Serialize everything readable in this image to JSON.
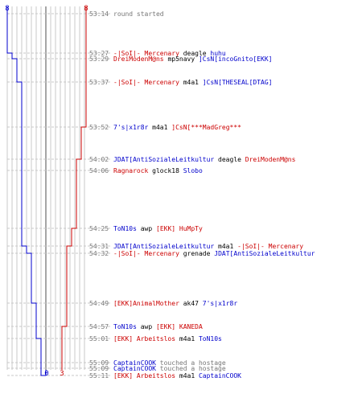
{
  "colors": {
    "team_a": "#0000cc",
    "team_b": "#cc0000",
    "neutral": "#777777",
    "text": "#000000"
  },
  "team_a_start": "8",
  "team_b_start": "8",
  "team_a_end": "0",
  "team_b_end": "3",
  "events": [
    {
      "time": "53:14",
      "parts": [
        {
          "t": "round started",
          "c": "neutral"
        }
      ]
    },
    {
      "time": "53:27",
      "parts": [
        {
          "t": "-|SoI|- Mercenary",
          "c": "team_b"
        },
        {
          "t": " deagle ",
          "c": "text"
        },
        {
          "t": "huhu",
          "c": "team_a"
        }
      ]
    },
    {
      "time": "53:29",
      "parts": [
        {
          "t": "DreiModenM@ns",
          "c": "team_b"
        },
        {
          "t": " mp5navy ",
          "c": "text"
        },
        {
          "t": "]CsN[incoGnito[EKK]",
          "c": "team_a"
        }
      ]
    },
    {
      "time": "53:37",
      "parts": [
        {
          "t": "-|SoI|- Mercenary",
          "c": "team_b"
        },
        {
          "t": " m4a1 ",
          "c": "text"
        },
        {
          "t": "]CsN[THESEAL[DTAG]",
          "c": "team_a"
        }
      ]
    },
    {
      "time": "53:52",
      "parts": [
        {
          "t": "7's|x1r8r",
          "c": "team_a"
        },
        {
          "t": " m4a1 ",
          "c": "text"
        },
        {
          "t": "]CsN[***MadGreg***",
          "c": "team_b"
        }
      ]
    },
    {
      "time": "54:02",
      "parts": [
        {
          "t": "JDAT[AntiSozialeLeitkultur",
          "c": "team_a"
        },
        {
          "t": " deagle ",
          "c": "text"
        },
        {
          "t": "DreiModenM@ns",
          "c": "team_b"
        }
      ]
    },
    {
      "time": "54:06",
      "parts": [
        {
          "t": "Ragnarock",
          "c": "team_b"
        },
        {
          "t": " glock18 ",
          "c": "text"
        },
        {
          "t": "Slobo",
          "c": "team_a"
        }
      ]
    },
    {
      "time": "54:25",
      "parts": [
        {
          "t": "ToN10s",
          "c": "team_a"
        },
        {
          "t": " awp ",
          "c": "text"
        },
        {
          "t": "[EKK] HuMpTy",
          "c": "team_b"
        }
      ]
    },
    {
      "time": "54:31",
      "parts": [
        {
          "t": "JDAT[AntiSozialeLeitkultur",
          "c": "team_a"
        },
        {
          "t": " m4a1 ",
          "c": "text"
        },
        {
          "t": "-|SoI|- Mercenary",
          "c": "team_b"
        }
      ]
    },
    {
      "time": "54:32",
      "parts": [
        {
          "t": "-|SoI|- Mercenary",
          "c": "team_b"
        },
        {
          "t": " grenade ",
          "c": "text"
        },
        {
          "t": "JDAT[AntiSozialeLeitkultur",
          "c": "team_a"
        }
      ]
    },
    {
      "time": "54:49",
      "parts": [
        {
          "t": "[EKK]AnimalMother",
          "c": "team_b"
        },
        {
          "t": " ak47 ",
          "c": "text"
        },
        {
          "t": "7's|x1r8r",
          "c": "team_a"
        }
      ]
    },
    {
      "time": "54:57",
      "parts": [
        {
          "t": "ToN10s",
          "c": "team_a"
        },
        {
          "t": " awp ",
          "c": "text"
        },
        {
          "t": "[EKK] KANEDA",
          "c": "team_b"
        }
      ]
    },
    {
      "time": "55:01",
      "parts": [
        {
          "t": "[EKK] Arbeitslos",
          "c": "team_b"
        },
        {
          "t": " m4a1 ",
          "c": "text"
        },
        {
          "t": "ToN10s",
          "c": "team_a"
        }
      ]
    },
    {
      "time": "55:09",
      "parts": [
        {
          "t": "CaptainCOOK",
          "c": "team_a"
        },
        {
          "t": " touched a hostage",
          "c": "neutral"
        }
      ]
    },
    {
      "time": "55:09",
      "parts": [
        {
          "t": "CaptainCOOK",
          "c": "team_a"
        },
        {
          "t": " touched a hostage",
          "c": "neutral"
        }
      ]
    },
    {
      "time": "55:11",
      "parts": [
        {
          "t": "[EKK] Arbeitslos",
          "c": "team_b"
        },
        {
          "t": " m4a1 ",
          "c": "text"
        },
        {
          "t": "CaptainCOOK",
          "c": "team_a"
        }
      ]
    }
  ]
}
